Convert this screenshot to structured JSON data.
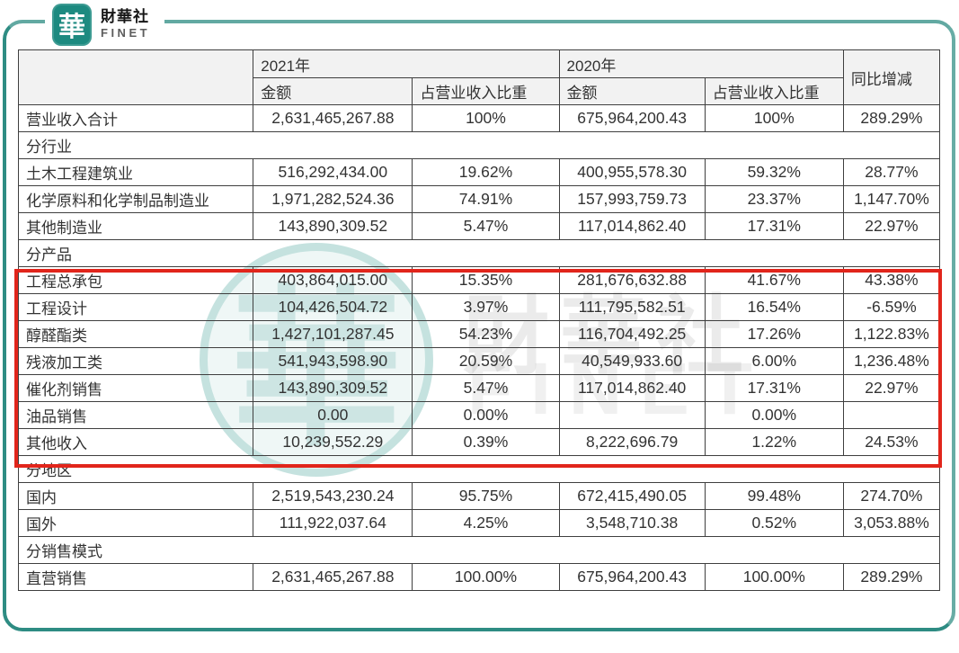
{
  "brand": {
    "logo_char": "華",
    "name_zh": "財華社",
    "name_en": "FINET"
  },
  "watermark": {
    "seal_char": "華",
    "text_zh": "財華社",
    "text_en": "FINET"
  },
  "colors": {
    "frame_teal": "#2E8C83",
    "logo_teal": "#1D8A80",
    "annotation_red": "#E1251B",
    "header_bg": "#F2F2F2",
    "table_border": "#3F3F3F"
  },
  "table": {
    "header": {
      "corner": "",
      "group_2021": "2021年",
      "group_2020": "2020年",
      "sub": [
        "金额",
        "占营业收入比重",
        "金额",
        "占营业收入比重"
      ],
      "yoy": "同比增减"
    },
    "rows": [
      {
        "type": "data",
        "label": "营业收入合计",
        "values": [
          "2,631,465,267.88",
          "100%",
          "675,964,200.43",
          "100%",
          "289.29%"
        ],
        "highlighted": false
      },
      {
        "type": "section",
        "label": "分行业"
      },
      {
        "type": "data",
        "label": "土木工程建筑业",
        "values": [
          "516,292,434.00",
          "19.62%",
          "400,955,578.30",
          "59.32%",
          "28.77%"
        ],
        "highlighted": false
      },
      {
        "type": "data",
        "label": "化学原料和化学制品制造业",
        "values": [
          "1,971,282,524.36",
          "74.91%",
          "157,993,759.73",
          "23.37%",
          "1,147.70%"
        ],
        "highlighted": false
      },
      {
        "type": "data",
        "label": "其他制造业",
        "values": [
          "143,890,309.52",
          "5.47%",
          "117,014,862.40",
          "17.31%",
          "22.97%"
        ],
        "highlighted": false
      },
      {
        "type": "section",
        "label": "分产品"
      },
      {
        "type": "data",
        "label": "工程总承包",
        "values": [
          "403,864,015.00",
          "15.35%",
          "281,676,632.88",
          "41.67%",
          "43.38%"
        ],
        "highlighted": true
      },
      {
        "type": "data",
        "label": "工程设计",
        "values": [
          "104,426,504.72",
          "3.97%",
          "111,795,582.51",
          "16.54%",
          "-6.59%"
        ],
        "highlighted": true
      },
      {
        "type": "data",
        "label": "醇醛酯类",
        "values": [
          "1,427,101,287.45",
          "54.23%",
          "116,704,492.25",
          "17.26%",
          "1,122.83%"
        ],
        "highlighted": true
      },
      {
        "type": "data",
        "label": "残液加工类",
        "values": [
          "541,943,598.90",
          "20.59%",
          "40,549,933.60",
          "6.00%",
          "1,236.48%"
        ],
        "highlighted": true
      },
      {
        "type": "data",
        "label": "催化剂销售",
        "values": [
          "143,890,309.52",
          "5.47%",
          "117,014,862.40",
          "17.31%",
          "22.97%"
        ],
        "highlighted": true
      },
      {
        "type": "data",
        "label": "油品销售",
        "values": [
          "0.00",
          "0.00%",
          "",
          "0.00%",
          ""
        ],
        "highlighted": true
      },
      {
        "type": "data",
        "label": "其他收入",
        "values": [
          "10,239,552.29",
          "0.39%",
          "8,222,696.79",
          "1.22%",
          "24.53%"
        ],
        "highlighted": true
      },
      {
        "type": "section",
        "label": "分地区"
      },
      {
        "type": "data",
        "label": "国内",
        "values": [
          "2,519,543,230.24",
          "95.75%",
          "672,415,490.05",
          "99.48%",
          "274.70%"
        ],
        "highlighted": false
      },
      {
        "type": "data",
        "label": "国外",
        "values": [
          "111,922,037.64",
          "4.25%",
          "3,548,710.38",
          "0.52%",
          "3,053.88%"
        ],
        "highlighted": false
      },
      {
        "type": "section",
        "label": "分销售模式"
      },
      {
        "type": "data",
        "label": "直营销售",
        "values": [
          "2,631,465,267.88",
          "100.00%",
          "675,964,200.43",
          "100.00%",
          "289.29%"
        ],
        "highlighted": false
      }
    ]
  }
}
